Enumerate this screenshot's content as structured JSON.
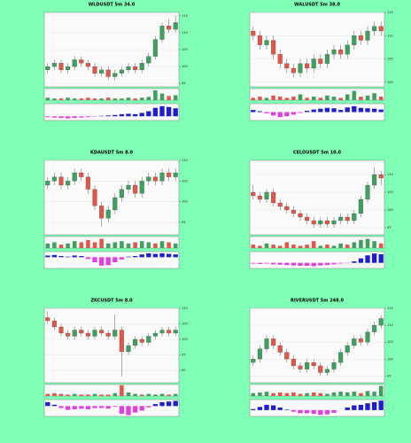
{
  "chart_data": [
    {
      "type": "candlestick",
      "title": "WLDUSDT 5m 34.0",
      "up_color": "#3f9f5f",
      "down_color": "#e0574a",
      "pos_color": "#1e1ecf",
      "neg_color": "#e23ee2",
      "ohlc": [
        [
          99,
          101,
          98,
          100
        ],
        [
          100,
          102,
          99,
          101
        ],
        [
          101,
          102,
          98,
          99
        ],
        [
          99,
          101,
          98,
          100
        ],
        [
          100,
          103,
          99,
          102
        ],
        [
          102,
          103,
          100,
          101
        ],
        [
          101,
          102,
          99,
          100
        ],
        [
          100,
          101,
          97,
          98
        ],
        [
          98,
          100,
          97,
          99
        ],
        [
          99,
          100,
          96,
          97
        ],
        [
          97,
          99,
          96,
          98
        ],
        [
          98,
          100,
          97,
          99
        ],
        [
          99,
          101,
          98,
          100
        ],
        [
          100,
          101,
          98,
          99
        ],
        [
          99,
          102,
          98,
          101
        ],
        [
          101,
          104,
          100,
          103
        ],
        [
          103,
          109,
          102,
          108
        ],
        [
          108,
          113,
          107,
          112
        ],
        [
          112,
          114,
          110,
          111
        ],
        [
          111,
          115,
          110,
          113
        ]
      ],
      "volume": [
        3,
        2,
        2,
        3,
        2,
        2,
        3,
        2,
        2,
        3,
        2,
        2,
        3,
        2,
        3,
        4,
        12,
        8,
        5,
        6
      ],
      "macd": [
        -0.2,
        -0.3,
        -0.4,
        -0.5,
        -0.4,
        -0.3,
        -0.2,
        -0.1,
        0.1,
        0.2,
        0.3,
        0.5,
        0.6,
        0.5,
        0.8,
        1.2,
        2.0,
        2.4,
        2.2,
        1.9
      ],
      "ylim": [
        94,
        116
      ],
      "yticks": [
        95,
        100,
        105,
        110,
        115
      ],
      "vol_ylim": [
        0,
        14
      ],
      "macd_ylim": [
        -1,
        3
      ],
      "grid": true
    },
    {
      "type": "candlestick",
      "title": "WALUSDT 5m 38.0",
      "up_color": "#3f9f5f",
      "down_color": "#e0574a",
      "pos_color": "#1e1ecf",
      "neg_color": "#e23ee2",
      "ohlc": [
        [
          111,
          112,
          109,
          110
        ],
        [
          110,
          111,
          107,
          108
        ],
        [
          108,
          110,
          107,
          109
        ],
        [
          109,
          110,
          105,
          106
        ],
        [
          106,
          107,
          103,
          104
        ],
        [
          104,
          105,
          102,
          103
        ],
        [
          103,
          104,
          101,
          102
        ],
        [
          102,
          105,
          101,
          104
        ],
        [
          104,
          105,
          102,
          103
        ],
        [
          103,
          106,
          102,
          105
        ],
        [
          105,
          106,
          103,
          104
        ],
        [
          104,
          107,
          103,
          106
        ],
        [
          106,
          108,
          105,
          107
        ],
        [
          107,
          108,
          105,
          106
        ],
        [
          106,
          109,
          105,
          108
        ],
        [
          108,
          111,
          107,
          110
        ],
        [
          110,
          111,
          108,
          109
        ],
        [
          109,
          112,
          108,
          111
        ],
        [
          111,
          113,
          110,
          112
        ],
        [
          112,
          113,
          110,
          111
        ]
      ],
      "volume": [
        2,
        3,
        2,
        4,
        3,
        2,
        3,
        5,
        2,
        3,
        2,
        4,
        3,
        2,
        5,
        8,
        3,
        4,
        6,
        3
      ],
      "macd": [
        0.5,
        0.2,
        -0.3,
        -0.8,
        -1.2,
        -1.0,
        -0.6,
        -0.2,
        0.3,
        0.6,
        0.8,
        1.0,
        0.9,
        0.5,
        1.1,
        1.4,
        1.0,
        0.9,
        0.8,
        0.6
      ],
      "ylim": [
        99,
        115
      ],
      "yticks": [
        100,
        105,
        110,
        115
      ],
      "vol_ylim": [
        0,
        10
      ],
      "macd_ylim": [
        -2,
        2
      ],
      "grid": true
    },
    {
      "type": "candlestick",
      "title": "KDAUSDT 5m 8.0",
      "up_color": "#3f9f5f",
      "down_color": "#e0574a",
      "pos_color": "#1e1ecf",
      "neg_color": "#e23ee2",
      "ohlc": [
        [
          104,
          106,
          103,
          105
        ],
        [
          105,
          107,
          104,
          106
        ],
        [
          106,
          107,
          103,
          104
        ],
        [
          104,
          106,
          103,
          105
        ],
        [
          105,
          108,
          104,
          107
        ],
        [
          107,
          108,
          105,
          106
        ],
        [
          106,
          107,
          102,
          103
        ],
        [
          103,
          104,
          98,
          99
        ],
        [
          99,
          100,
          94,
          96
        ],
        [
          96,
          99,
          95,
          98
        ],
        [
          98,
          102,
          97,
          101
        ],
        [
          101,
          104,
          100,
          103
        ],
        [
          103,
          105,
          102,
          104
        ],
        [
          104,
          105,
          101,
          102
        ],
        [
          102,
          106,
          101,
          105
        ],
        [
          105,
          107,
          104,
          106
        ],
        [
          106,
          107,
          104,
          105
        ],
        [
          105,
          108,
          104,
          107
        ],
        [
          107,
          108,
          105,
          106
        ],
        [
          106,
          108,
          105,
          107
        ]
      ],
      "volume": [
        4,
        5,
        3,
        4,
        6,
        5,
        7,
        5,
        8,
        4,
        5,
        6,
        4,
        5,
        6,
        5,
        4,
        6,
        5,
        4
      ],
      "macd": [
        0.3,
        0.4,
        0.2,
        0.1,
        0.3,
        0.2,
        -0.3,
        -0.9,
        -1.5,
        -1.4,
        -0.9,
        -0.4,
        0.1,
        0.2,
        0.5,
        0.7,
        0.6,
        0.7,
        0.6,
        0.5
      ],
      "ylim": [
        92,
        110
      ],
      "yticks": [
        95,
        100,
        105,
        110
      ],
      "vol_ylim": [
        0,
        10
      ],
      "macd_ylim": [
        -2,
        1
      ],
      "grid": true
    },
    {
      "type": "candlestick",
      "title": "CELOUSDT 5m 10.0",
      "up_color": "#3f9f5f",
      "down_color": "#e0574a",
      "pos_color": "#1e1ecf",
      "neg_color": "#e23ee2",
      "ohlc": [
        [
          105,
          107,
          103,
          104
        ],
        [
          104,
          105,
          102,
          103
        ],
        [
          103,
          106,
          102,
          105
        ],
        [
          105,
          106,
          101,
          102
        ],
        [
          102,
          103,
          100,
          101
        ],
        [
          101,
          102,
          99,
          100
        ],
        [
          100,
          101,
          98,
          99
        ],
        [
          99,
          100,
          97,
          98
        ],
        [
          98,
          99,
          96,
          97
        ],
        [
          97,
          98,
          95,
          96
        ],
        [
          96,
          98,
          95,
          97
        ],
        [
          97,
          98,
          95,
          96
        ],
        [
          96,
          98,
          95,
          97
        ],
        [
          97,
          99,
          96,
          98
        ],
        [
          98,
          99,
          96,
          97
        ],
        [
          97,
          100,
          96,
          99
        ],
        [
          99,
          104,
          98,
          103
        ],
        [
          103,
          108,
          102,
          107
        ],
        [
          107,
          112,
          106,
          110
        ],
        [
          110,
          111,
          107,
          109
        ]
      ],
      "volume": [
        3,
        2,
        4,
        3,
        2,
        5,
        3,
        2,
        3,
        6,
        2,
        3,
        2,
        4,
        3,
        5,
        7,
        8,
        6,
        4
      ],
      "macd": [
        -0.2,
        -0.3,
        -0.2,
        -0.4,
        -0.5,
        -0.6,
        -0.7,
        -0.8,
        -0.8,
        -0.9,
        -0.7,
        -0.6,
        -0.4,
        -0.2,
        -0.1,
        0.4,
        1.2,
        2.0,
        2.5,
        2.3
      ],
      "ylim": [
        93,
        114
      ],
      "yticks": [
        95,
        100,
        105,
        110
      ],
      "vol_ylim": [
        0,
        10
      ],
      "macd_ylim": [
        -1.5,
        3
      ],
      "grid": true
    },
    {
      "type": "candlestick",
      "title": "ZKCUSDT 5m 8.0",
      "up_color": "#3f9f5f",
      "down_color": "#e0574a",
      "pos_color": "#1e1ecf",
      "neg_color": "#e23ee2",
      "ohlc": [
        [
          107,
          109,
          105,
          106
        ],
        [
          106,
          107,
          103,
          104
        ],
        [
          104,
          105,
          101,
          102
        ],
        [
          102,
          103,
          100,
          101
        ],
        [
          101,
          104,
          100,
          103
        ],
        [
          103,
          104,
          101,
          102
        ],
        [
          102,
          103,
          100,
          101
        ],
        [
          101,
          104,
          100,
          103
        ],
        [
          103,
          104,
          101,
          102
        ],
        [
          102,
          103,
          100,
          101
        ],
        [
          101,
          108,
          100,
          103
        ],
        [
          103,
          104,
          88,
          96
        ],
        [
          96,
          99,
          95,
          98
        ],
        [
          98,
          101,
          97,
          100
        ],
        [
          100,
          101,
          98,
          99
        ],
        [
          99,
          102,
          98,
          101
        ],
        [
          101,
          103,
          100,
          102
        ],
        [
          102,
          104,
          101,
          103
        ],
        [
          103,
          104,
          101,
          102
        ],
        [
          102,
          104,
          101,
          103
        ]
      ],
      "volume": [
        3,
        4,
        3,
        2,
        3,
        2,
        2,
        3,
        2,
        2,
        4,
        15,
        5,
        3,
        2,
        3,
        2,
        3,
        2,
        3
      ],
      "macd": [
        0.6,
        0.2,
        -0.3,
        -0.6,
        -0.5,
        -0.4,
        -0.5,
        -0.3,
        -0.3,
        -0.4,
        -0.1,
        -1.2,
        -1.4,
        -1.0,
        -0.7,
        -0.2,
        0.3,
        0.6,
        0.7,
        0.8
      ],
      "ylim": [
        86,
        110
      ],
      "yticks": [
        90,
        95,
        100,
        105,
        110
      ],
      "vol_ylim": [
        0,
        16
      ],
      "macd_ylim": [
        -1.6,
        1
      ],
      "grid": true
    },
    {
      "type": "candlestick",
      "title": "RIVERUSDT 5m 248.0",
      "up_color": "#3f9f5f",
      "down_color": "#e0574a",
      "pos_color": "#1e1ecf",
      "neg_color": "#e23ee2",
      "ohlc": [
        [
          99,
          101,
          98,
          100
        ],
        [
          100,
          104,
          99,
          103
        ],
        [
          103,
          107,
          102,
          106
        ],
        [
          106,
          107,
          103,
          104
        ],
        [
          104,
          105,
          101,
          102
        ],
        [
          102,
          103,
          99,
          100
        ],
        [
          100,
          101,
          97,
          98
        ],
        [
          98,
          99,
          96,
          97
        ],
        [
          97,
          100,
          96,
          99
        ],
        [
          99,
          100,
          97,
          98
        ],
        [
          98,
          99,
          95,
          96
        ],
        [
          96,
          98,
          95,
          97
        ],
        [
          97,
          100,
          96,
          99
        ],
        [
          99,
          103,
          98,
          102
        ],
        [
          102,
          105,
          101,
          104
        ],
        [
          104,
          107,
          103,
          106
        ],
        [
          106,
          107,
          104,
          105
        ],
        [
          105,
          109,
          104,
          108
        ],
        [
          108,
          111,
          107,
          110
        ],
        [
          110,
          113,
          109,
          112
        ]
      ],
      "volume": [
        4,
        5,
        6,
        4,
        5,
        4,
        5,
        3,
        4,
        5,
        4,
        3,
        5,
        6,
        5,
        6,
        4,
        7,
        6,
        14
      ],
      "macd": [
        0.2,
        0.6,
        1.0,
        0.9,
        0.5,
        0.1,
        -0.3,
        -0.6,
        -0.6,
        -0.7,
        -0.9,
        -0.8,
        -0.5,
        0.0,
        0.5,
        0.9,
        1.0,
        1.3,
        1.5,
        1.8
      ],
      "ylim": [
        93,
        115
      ],
      "yticks": [
        95,
        100,
        105,
        110,
        115
      ],
      "vol_ylim": [
        0,
        16
      ],
      "macd_ylim": [
        -1.2,
        2
      ],
      "grid": true
    }
  ]
}
